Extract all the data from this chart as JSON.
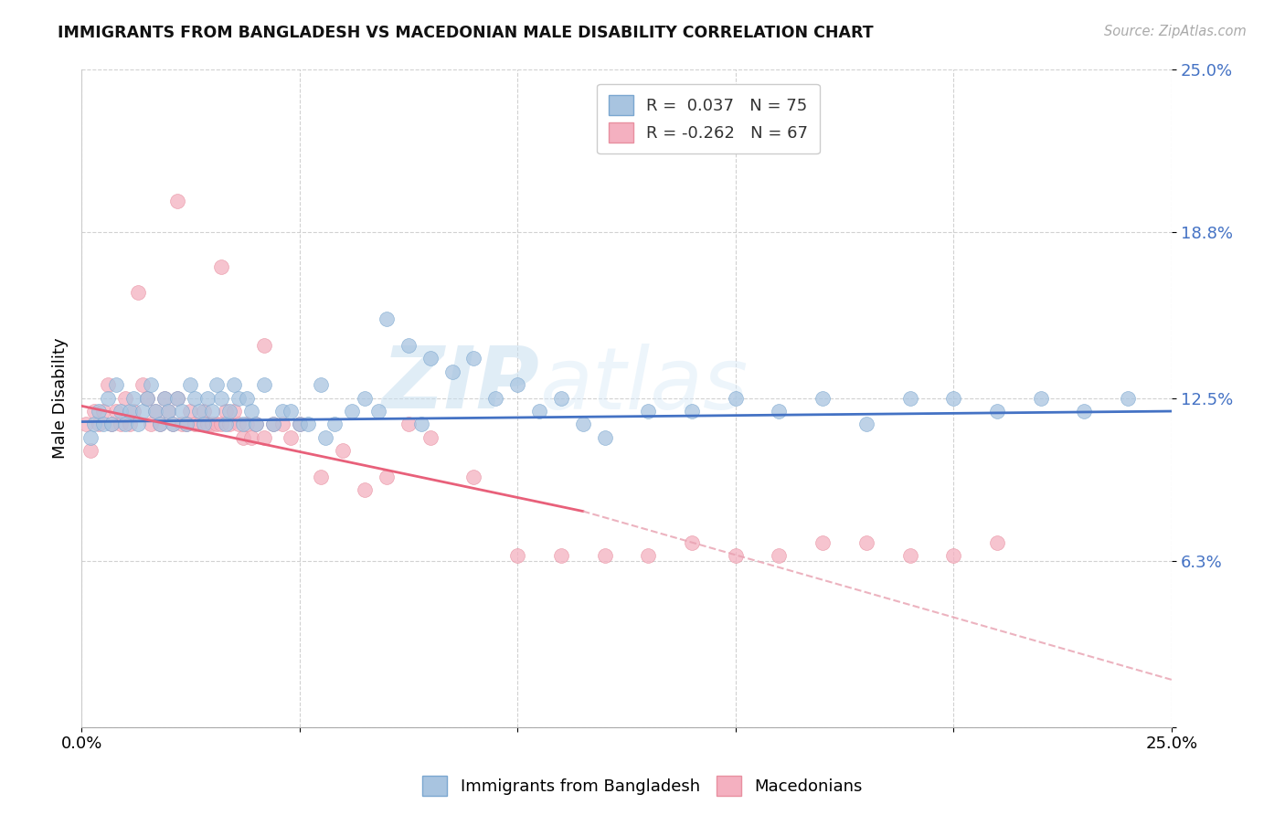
{
  "title": "IMMIGRANTS FROM BANGLADESH VS MACEDONIAN MALE DISABILITY CORRELATION CHART",
  "source": "Source: ZipAtlas.com",
  "ylabel": "Male Disability",
  "xlim": [
    0.0,
    0.25
  ],
  "ylim": [
    0.0,
    0.25
  ],
  "ytick_vals": [
    0.0,
    0.063,
    0.125,
    0.188,
    0.25
  ],
  "ytick_labels": [
    "",
    "6.3%",
    "12.5%",
    "18.8%",
    "25.0%"
  ],
  "xtick_vals": [
    0.0,
    0.05,
    0.1,
    0.15,
    0.2,
    0.25
  ],
  "xtick_labels": [
    "0.0%",
    "",
    "",
    "",
    "",
    "25.0%"
  ],
  "watermark_zip": "ZIP",
  "watermark_atlas": "atlas",
  "blue_color": "#a8c4e0",
  "blue_edge": "#7ba7d0",
  "pink_color": "#f4b0c0",
  "pink_edge": "#e890a0",
  "line_blue_color": "#4472c4",
  "line_pink_solid_color": "#e8607a",
  "line_pink_dash_color": "#e8a0b0",
  "blue_r": 0.037,
  "blue_n": 75,
  "pink_r": -0.262,
  "pink_n": 67,
  "blue_line_y0": 0.116,
  "blue_line_y1": 0.12,
  "pink_line_x0": 0.0,
  "pink_line_y0": 0.122,
  "pink_line_x_break": 0.115,
  "pink_line_y_break": 0.082,
  "pink_line_x1": 0.25,
  "pink_line_y1": 0.018,
  "blue_points_x": [
    0.002,
    0.003,
    0.004,
    0.005,
    0.006,
    0.007,
    0.008,
    0.009,
    0.01,
    0.011,
    0.012,
    0.013,
    0.014,
    0.015,
    0.016,
    0.017,
    0.018,
    0.019,
    0.02,
    0.021,
    0.022,
    0.023,
    0.024,
    0.025,
    0.026,
    0.027,
    0.028,
    0.029,
    0.03,
    0.031,
    0.032,
    0.033,
    0.034,
    0.035,
    0.036,
    0.037,
    0.038,
    0.039,
    0.04,
    0.042,
    0.044,
    0.046,
    0.05,
    0.055,
    0.058,
    0.062,
    0.065,
    0.07,
    0.075,
    0.08,
    0.085,
    0.09,
    0.1,
    0.11,
    0.12,
    0.13,
    0.14,
    0.15,
    0.16,
    0.17,
    0.18,
    0.19,
    0.2,
    0.21,
    0.22,
    0.23,
    0.24,
    0.048,
    0.052,
    0.056,
    0.068,
    0.078,
    0.095,
    0.105,
    0.115
  ],
  "blue_points_y": [
    0.11,
    0.115,
    0.12,
    0.115,
    0.125,
    0.115,
    0.13,
    0.12,
    0.115,
    0.12,
    0.125,
    0.115,
    0.12,
    0.125,
    0.13,
    0.12,
    0.115,
    0.125,
    0.12,
    0.115,
    0.125,
    0.12,
    0.115,
    0.13,
    0.125,
    0.12,
    0.115,
    0.125,
    0.12,
    0.13,
    0.125,
    0.115,
    0.12,
    0.13,
    0.125,
    0.115,
    0.125,
    0.12,
    0.115,
    0.13,
    0.115,
    0.12,
    0.115,
    0.13,
    0.115,
    0.12,
    0.125,
    0.155,
    0.145,
    0.14,
    0.135,
    0.14,
    0.13,
    0.125,
    0.11,
    0.12,
    0.12,
    0.125,
    0.12,
    0.125,
    0.115,
    0.125,
    0.125,
    0.12,
    0.125,
    0.12,
    0.125,
    0.12,
    0.115,
    0.11,
    0.12,
    0.115,
    0.125,
    0.12,
    0.115
  ],
  "pink_points_x": [
    0.001,
    0.002,
    0.003,
    0.004,
    0.005,
    0.006,
    0.007,
    0.008,
    0.009,
    0.01,
    0.011,
    0.012,
    0.013,
    0.014,
    0.015,
    0.016,
    0.017,
    0.018,
    0.019,
    0.02,
    0.021,
    0.022,
    0.023,
    0.024,
    0.025,
    0.026,
    0.027,
    0.028,
    0.029,
    0.03,
    0.031,
    0.032,
    0.033,
    0.034,
    0.035,
    0.036,
    0.037,
    0.038,
    0.039,
    0.04,
    0.042,
    0.044,
    0.046,
    0.048,
    0.05,
    0.055,
    0.06,
    0.065,
    0.07,
    0.075,
    0.08,
    0.09,
    0.1,
    0.11,
    0.12,
    0.13,
    0.14,
    0.15,
    0.16,
    0.17,
    0.18,
    0.19,
    0.2,
    0.21,
    0.022,
    0.032,
    0.042
  ],
  "pink_points_y": [
    0.115,
    0.105,
    0.12,
    0.115,
    0.12,
    0.13,
    0.115,
    0.12,
    0.115,
    0.125,
    0.115,
    0.12,
    0.165,
    0.13,
    0.125,
    0.115,
    0.12,
    0.115,
    0.125,
    0.12,
    0.115,
    0.125,
    0.115,
    0.115,
    0.12,
    0.115,
    0.115,
    0.12,
    0.115,
    0.115,
    0.115,
    0.115,
    0.12,
    0.115,
    0.12,
    0.115,
    0.11,
    0.115,
    0.11,
    0.115,
    0.11,
    0.115,
    0.115,
    0.11,
    0.115,
    0.095,
    0.105,
    0.09,
    0.095,
    0.115,
    0.11,
    0.095,
    0.065,
    0.065,
    0.065,
    0.065,
    0.07,
    0.065,
    0.065,
    0.07,
    0.07,
    0.065,
    0.065,
    0.07,
    0.2,
    0.175,
    0.145
  ]
}
